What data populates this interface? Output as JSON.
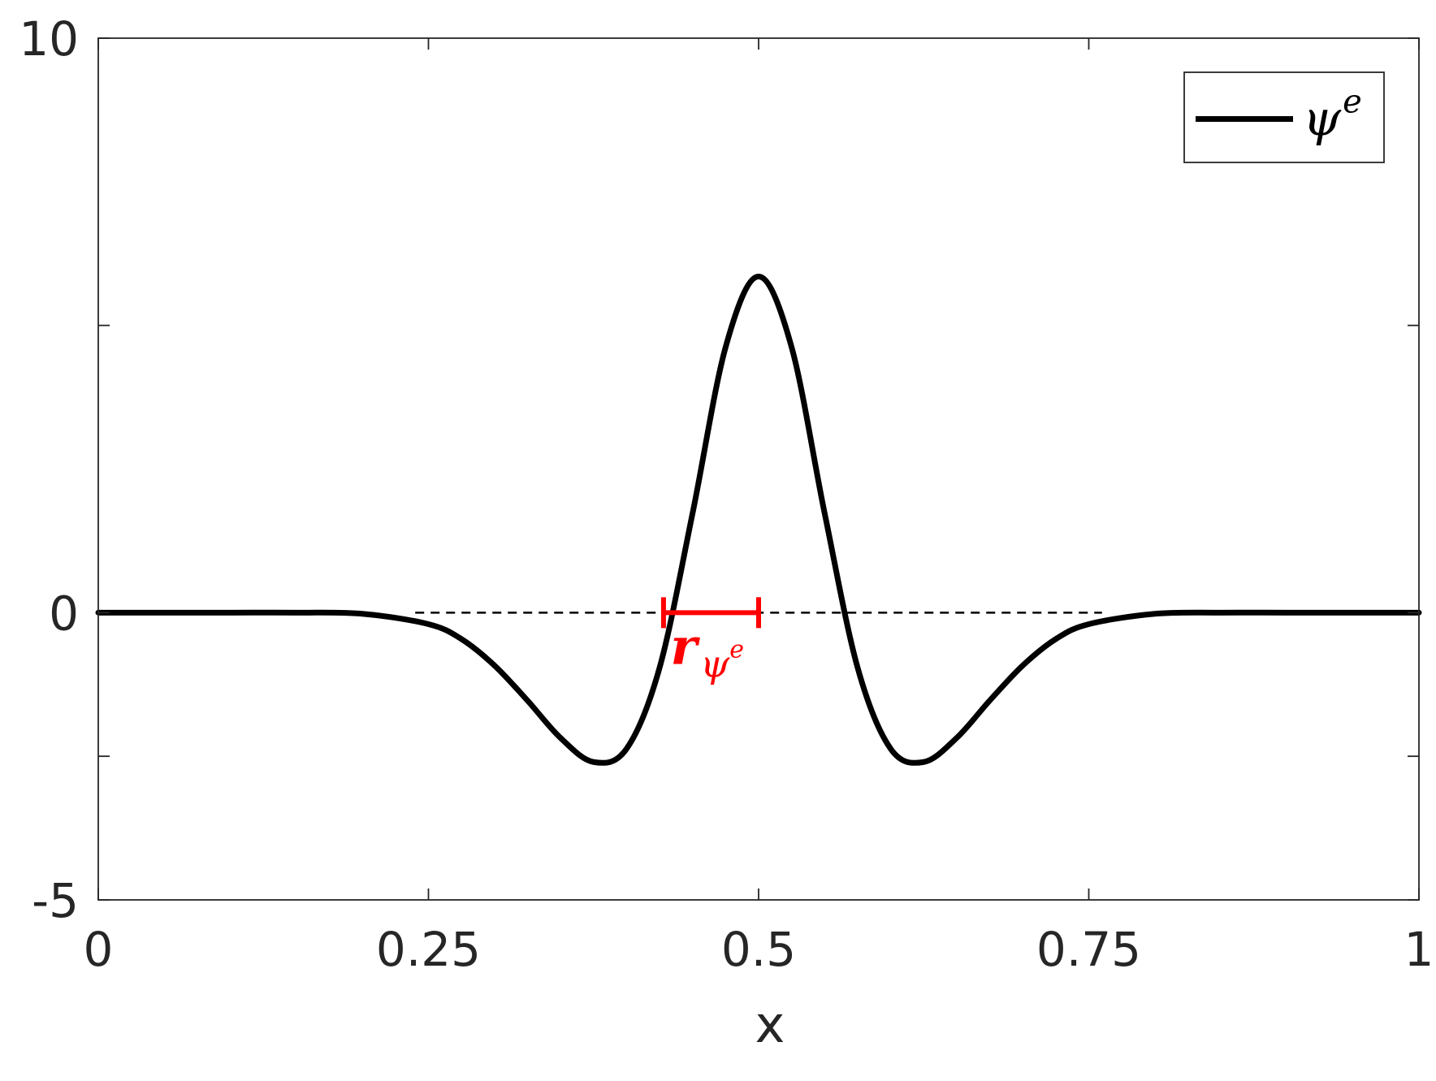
{
  "chart_data": {
    "type": "line",
    "title": "",
    "xlabel": "x",
    "ylabel": "",
    "xlim": [
      0,
      1
    ],
    "ylim": [
      -5,
      10
    ],
    "x_ticks": [
      0,
      0.25,
      0.5,
      0.75,
      1
    ],
    "x_tick_labels": [
      "0",
      "0.25",
      "0.5",
      "0.75",
      "1"
    ],
    "y_ticks": [
      -5,
      0,
      10
    ],
    "y_tick_labels": [
      "-5",
      "0",
      "10"
    ],
    "grid": false,
    "legend": {
      "position": "top-right",
      "entries": [
        {
          "label_base": "ψ",
          "label_sup": "e",
          "color": "#000000"
        }
      ]
    },
    "series": [
      {
        "name": "ψe",
        "color": "#000000",
        "style": "solid",
        "x": [
          0,
          0.05,
          0.1,
          0.15,
          0.2,
          0.25,
          0.275,
          0.3,
          0.325,
          0.35,
          0.375,
          0.4,
          0.425,
          0.45,
          0.475,
          0.5,
          0.525,
          0.55,
          0.575,
          0.6,
          0.625,
          0.65,
          0.675,
          0.7,
          0.725,
          0.75,
          0.8,
          0.85,
          0.9,
          0.95,
          1
        ],
        "y": [
          0,
          0,
          0,
          0,
          -0.02,
          -0.2,
          -0.46,
          -0.92,
          -1.53,
          -2.18,
          -2.6,
          -2.37,
          -0.96,
          1.73,
          4.62,
          5.85,
          4.62,
          1.73,
          -0.96,
          -2.37,
          -2.6,
          -2.18,
          -1.53,
          -0.92,
          -0.46,
          -0.2,
          -0.02,
          0,
          0,
          0,
          0
        ]
      },
      {
        "name": "",
        "color": "#000000",
        "style": "dashed",
        "x": [
          0.24,
          0.76
        ],
        "y": [
          0,
          0
        ]
      }
    ],
    "annotations": [
      {
        "type": "interval",
        "x_start": 0.428,
        "x_end": 0.5,
        "y": 0,
        "color": "#ff0000",
        "label_base": "r",
        "label_sub_base": "ψ",
        "label_sub_sup": "e"
      }
    ]
  }
}
